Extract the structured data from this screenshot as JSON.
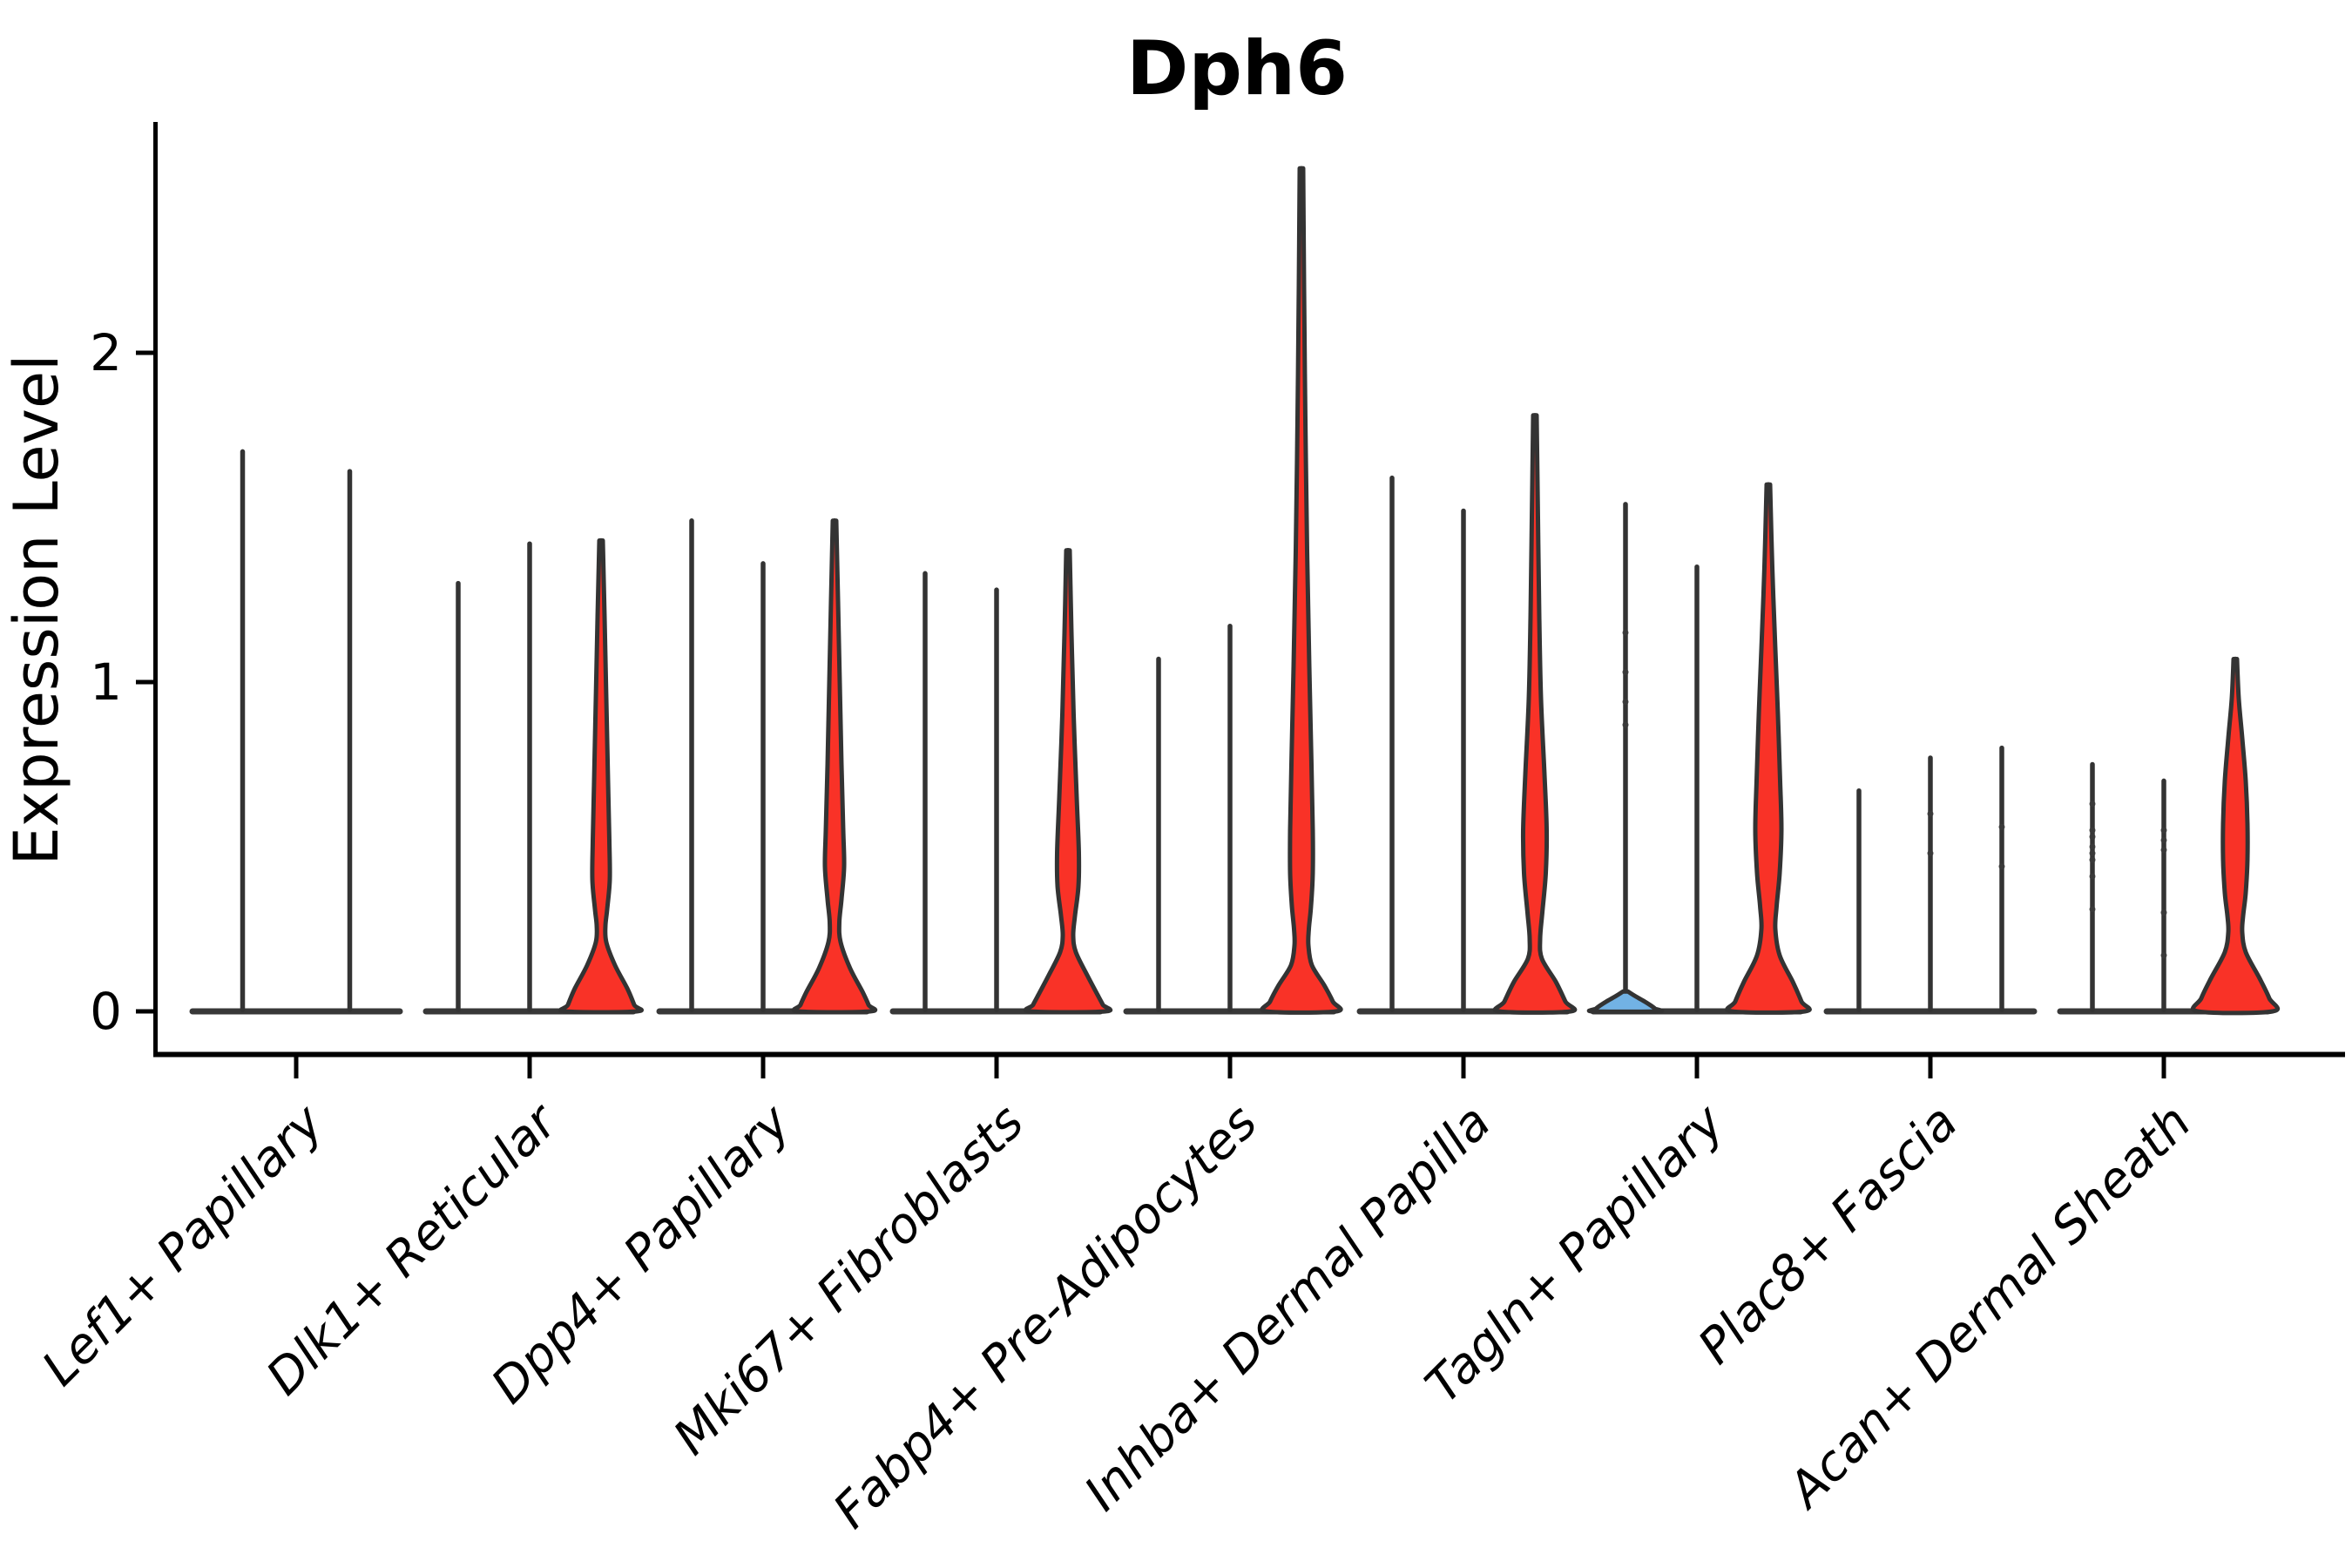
{
  "title": "Dph6",
  "colors": {
    "red": "#F93227",
    "blue": "#72B2E4",
    "outline": "#333333",
    "pancake": "#383838",
    "axis": "#000000",
    "dot": "#3a3a3a"
  },
  "chart_data": {
    "type": "violin",
    "title": "Dph6",
    "xlabel": "",
    "ylabel": "Expression Level",
    "yticks": [
      0,
      1,
      2
    ],
    "ylim": [
      -0.14,
      2.7
    ],
    "grid": false,
    "legend": "none",
    "categories": [
      "Lef1+ Papillary",
      "Dlk1+ Reticular",
      "Dpp4+ Papillary",
      "Mki67+ Fibroblasts",
      "Fabp4+ Pre-Adipocytes",
      "Inhba+ Dermal Papilla",
      "Tagln+ Papillary",
      "Plac8+ Fascia",
      "Acan+ Dermal Sheath"
    ],
    "groups": [
      {
        "category": "Lef1+ Papillary",
        "violins": [
          {
            "max": 1.7,
            "fill": "none"
          },
          {
            "max": 1.64,
            "fill": "none"
          }
        ]
      },
      {
        "category": "Dlk1+ Reticular",
        "violins": [
          {
            "max": 1.3,
            "fill": "none"
          },
          {
            "max": 1.42,
            "fill": "none"
          },
          {
            "max": 1.43,
            "fill": "red",
            "profile": [
              [
                1.43,
                2
              ],
              [
                1.2,
                4
              ],
              [
                0.95,
                6
              ],
              [
                0.7,
                8
              ],
              [
                0.52,
                9.5
              ],
              [
                0.4,
                10
              ],
              [
                0.31,
                7
              ],
              [
                0.26,
                5
              ],
              [
                0.21,
                6
              ],
              [
                0.14,
                16
              ],
              [
                0.07,
                30
              ],
              [
                0.02,
                38
              ],
              [
                0,
                41
              ]
            ]
          }
        ]
      },
      {
        "category": "Dpp4+ Papillary",
        "violins": [
          {
            "max": 1.49,
            "fill": "none"
          },
          {
            "max": 1.36,
            "fill": "none"
          },
          {
            "max": 1.49,
            "fill": "red",
            "profile": [
              [
                1.49,
                2
              ],
              [
                1.25,
                4
              ],
              [
                1.0,
                6
              ],
              [
                0.75,
                8
              ],
              [
                0.55,
                10
              ],
              [
                0.44,
                11
              ],
              [
                0.34,
                8
              ],
              [
                0.27,
                5.5
              ],
              [
                0.21,
                7
              ],
              [
                0.13,
                18
              ],
              [
                0.06,
                32
              ],
              [
                0.02,
                39
              ],
              [
                0,
                41
              ]
            ]
          }
        ]
      },
      {
        "category": "Mki67+ Fibroblasts",
        "violins": [
          {
            "max": 1.33,
            "fill": "none"
          },
          {
            "max": 1.28,
            "fill": "none"
          },
          {
            "max": 1.4,
            "fill": "red",
            "profile": [
              [
                1.4,
                2
              ],
              [
                1.15,
                4
              ],
              [
                0.9,
                6.5
              ],
              [
                0.65,
                10
              ],
              [
                0.48,
                12.5
              ],
              [
                0.38,
                12
              ],
              [
                0.29,
                8
              ],
              [
                0.23,
                6
              ],
              [
                0.18,
                9
              ],
              [
                0.11,
                22
              ],
              [
                0.05,
                34
              ],
              [
                0.02,
                40
              ],
              [
                0,
                43
              ]
            ]
          }
        ]
      },
      {
        "category": "Fabp4+ Pre-Adipocytes",
        "violins": [
          {
            "max": 1.07,
            "fill": "none"
          },
          {
            "max": 1.17,
            "fill": "none"
          },
          {
            "max": 2.56,
            "fill": "red",
            "profile": [
              [
                2.56,
                2
              ],
              [
                2.2,
                3
              ],
              [
                1.8,
                4.5
              ],
              [
                1.4,
                6.5
              ],
              [
                1.05,
                9
              ],
              [
                0.75,
                11.5
              ],
              [
                0.55,
                13
              ],
              [
                0.42,
                13
              ],
              [
                0.32,
                11
              ],
              [
                0.25,
                8.5
              ],
              [
                0.2,
                8
              ],
              [
                0.14,
                12
              ],
              [
                0.08,
                26
              ],
              [
                0.03,
                36
              ],
              [
                0,
                40
              ]
            ]
          }
        ]
      },
      {
        "category": "Inhba+ Dermal Papilla",
        "violins": [
          {
            "max": 1.62,
            "fill": "none"
          },
          {
            "max": 1.52,
            "fill": "none"
          },
          {
            "max": 1.81,
            "fill": "red",
            "profile": [
              [
                1.81,
                2
              ],
              [
                1.5,
                3.5
              ],
              [
                1.2,
                5
              ],
              [
                0.95,
                7
              ],
              [
                0.72,
                11
              ],
              [
                0.55,
                13.5
              ],
              [
                0.42,
                12.5
              ],
              [
                0.3,
                8.5
              ],
              [
                0.22,
                6
              ],
              [
                0.16,
                8
              ],
              [
                0.09,
                24
              ],
              [
                0.03,
                35
              ],
              [
                0,
                41
              ]
            ]
          }
        ]
      },
      {
        "category": "Tagln+ Papillary",
        "violins": [
          {
            "max": 1.54,
            "fill": "blue",
            "profile": [
              [
                0.06,
                3
              ],
              [
                0.045,
                12
              ],
              [
                0.03,
                22
              ],
              [
                0.018,
                29
              ],
              [
                0.008,
                34
              ],
              [
                0,
                37
              ]
            ],
            "dots": [
              1.15,
              1.03,
              0.94,
              0.87
            ]
          },
          {
            "max": 1.35,
            "fill": "none"
          },
          {
            "max": 1.6,
            "fill": "red",
            "profile": [
              [
                1.6,
                2
              ],
              [
                1.35,
                4.5
              ],
              [
                1.1,
                8
              ],
              [
                0.9,
                11
              ],
              [
                0.7,
                13.5
              ],
              [
                0.55,
                15
              ],
              [
                0.42,
                13
              ],
              [
                0.32,
                9.5
              ],
              [
                0.25,
                8
              ],
              [
                0.17,
                13
              ],
              [
                0.09,
                28
              ],
              [
                0.03,
                38
              ],
              [
                0,
                42
              ]
            ]
          }
        ]
      },
      {
        "category": "Plac8+ Fascia",
        "violins": [
          {
            "max": 0.67,
            "fill": "none"
          },
          {
            "max": 0.77,
            "fill": "none",
            "dots": [
              0.6,
              0.48
            ]
          },
          {
            "max": 0.8,
            "fill": "none",
            "dots": [
              0.56,
              0.44
            ]
          }
        ]
      },
      {
        "category": "Acan+ Dermal Sheath",
        "violins": [
          {
            "max": 0.75,
            "fill": "none",
            "dots": [
              0.63,
              0.55,
              0.53,
              0.5,
              0.48,
              0.46,
              0.41,
              0.31
            ]
          },
          {
            "max": 0.7,
            "fill": "none",
            "dots": [
              0.55,
              0.52,
              0.49,
              0.3,
              0.17
            ]
          },
          {
            "max": 1.07,
            "fill": "red",
            "profile": [
              [
                1.07,
                2
              ],
              [
                0.95,
                4
              ],
              [
                0.83,
                8
              ],
              [
                0.7,
                12
              ],
              [
                0.57,
                14
              ],
              [
                0.46,
                14
              ],
              [
                0.36,
                12
              ],
              [
                0.29,
                9
              ],
              [
                0.24,
                8
              ],
              [
                0.18,
                12
              ],
              [
                0.1,
                28
              ],
              [
                0.04,
                39
              ],
              [
                0,
                43
              ]
            ]
          }
        ]
      }
    ]
  }
}
